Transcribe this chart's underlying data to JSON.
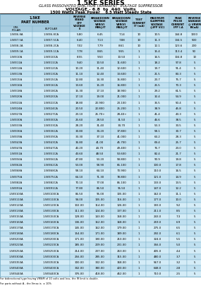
{
  "title": "1.5KE SERIES",
  "subtitle1": "GLASS PASSOVATED JUNCTION TRANSIENT  VOLTAGE SUPPRESSOR",
  "subtitle2": "VOLTAGE - 6.8  to  440  Volts",
  "subtitle3": "1500 Watts Peak Power    6.5 Watt Steady State",
  "col_headers": [
    "REVERSE\nSTAND\nOFF\nVOLTAGE\nE",
    "BREAKDOWN\nVOLTAGE\nVBR(V)\nMIN@IT",
    "BREAKDOWN\nVOLTAGE\nVBR(V)\nMAX@IT",
    "TEST\nCURRENT\nIT (mA)",
    "MAXIMUM\nCLAMPING\nVOLTAGE\n@IPP V(C)",
    "PEAK\nPULSE\nCURRENT\nIPP I.A",
    "REVERSE\nLEAKAGE\n@ VRWM\nIR(uA)"
  ],
  "rows": [
    [
      "1.5KE6.8A",
      "1.5KE6.8CA",
      "5.80",
      "6.45",
      "7.14",
      "10",
      "10.5",
      "144.8",
      "1000"
    ],
    [
      "1.5KE7.5A",
      "1.5KE7.5CA",
      "6.40",
      "7.13",
      "7.88",
      "10",
      "11.3",
      "134.5",
      "500"
    ],
    [
      "1.5KE8.2A",
      "1.5KE8.2CA",
      "7.02",
      "7.79",
      "8.61",
      "10",
      "12.1",
      "123.6",
      "200"
    ],
    [
      "1.5KE9.1A",
      "1.5KE9.1CA",
      "7.78",
      "8.65",
      "9.55",
      "1",
      "15.4",
      "113.4",
      "50"
    ],
    [
      "1.5KE10A",
      "1.5KE10CA",
      "8.55",
      "9.50",
      "10.50",
      "1",
      "16.5",
      "104.8",
      "10"
    ],
    [
      "1.5KE11A",
      "1.5KE11CA",
      "9.40",
      "10.50",
      "11.600",
      "1",
      "18.2",
      "97.8",
      "5"
    ],
    [
      "1.5KE12A",
      "1.5KE12CA",
      "10.20",
      "11.40",
      "12.600",
      "1",
      "19.7",
      "91.4",
      "5"
    ],
    [
      "1.5KE13A",
      "1.5KE13CA",
      "11.10",
      "12.40",
      "13.600",
      "1",
      "21.5",
      "83.3",
      "5"
    ],
    [
      "1.5KE15A",
      "1.5KE15CA",
      "12.80",
      "14.30",
      "15.800",
      "1",
      "23.7",
      "75.7",
      "5"
    ],
    [
      "1.5KE16A",
      "1.5KE16CA",
      "13.60",
      "15.20",
      "16.800",
      "1",
      "25.5",
      "70.3",
      "5"
    ],
    [
      "1.5KE18A",
      "1.5KE18CA",
      "15.30",
      "17.10",
      "18.900",
      "1",
      "29.2",
      "61.5",
      "5"
    ],
    [
      "1.5KE20A",
      "1.5KE20CA",
      "17.10",
      "19.00",
      "21.000",
      "1",
      "32.4",
      "54.9",
      "5"
    ],
    [
      "1.5KE22A",
      "1.5KE22CA",
      "18.80",
      "20.900",
      "23.100",
      "1",
      "35.5",
      "50.4",
      "5"
    ],
    [
      "1.5KE24A",
      "1.5KE24CA",
      "20.50",
      "22.800",
      "25.200",
      "1",
      "38.9",
      "45.8",
      "5"
    ],
    [
      "1.5KE27A",
      "1.5KE27CA",
      "23.10",
      "25.70+",
      "28.40+",
      "1",
      "41.4",
      "43.3",
      "5"
    ],
    [
      "1.5KE30A",
      "1.5KE30CA",
      "25.60",
      "28.50",
      "31.50",
      "1",
      "46.6",
      "38.5",
      "5"
    ],
    [
      "1.5KE33A",
      "1.5KE33CA",
      "28.20",
      "31.40",
      "34.70",
      "1",
      "53.3",
      "33.5",
      "5"
    ],
    [
      "1.5KE36A",
      "1.5KE36CA",
      "30.80",
      "34.20",
      "37.800",
      "1",
      "58.1",
      "30.7",
      "5"
    ],
    [
      "1.5KE39A",
      "1.5KE39CA",
      "33.30",
      "37.10",
      "41.000",
      "1",
      "63.2",
      "28.3",
      "5"
    ],
    [
      "1.5KE43A",
      "1.5KE43CA",
      "36.80",
      "41.00",
      "45.700",
      "1",
      "69.4",
      "25.7",
      "5"
    ],
    [
      "1.5KE47A",
      "1.5KE47CA",
      "40.20",
      "44.70",
      "49.400",
      "1",
      "76.7",
      "23.0",
      "5"
    ],
    [
      "1.5KE51A",
      "1.5KE51CA",
      "43.60",
      "48.50",
      "53.600",
      "1",
      "82.4",
      "21.7",
      "5"
    ],
    [
      "1.5KE56A",
      "1.5KE56CA",
      "47.80",
      "53.20",
      "58.800",
      "1",
      "90.9",
      "19.8",
      "5"
    ],
    [
      "1.5KE62A",
      "1.5KE62CA",
      "53.00",
      "58.90",
      "65.100",
      "1",
      "100.0",
      "17.8",
      "5"
    ],
    [
      "1.5KE68A",
      "1.5KE68CA",
      "58.10",
      "64.10",
      "70.900",
      "1",
      "110.0",
      "16.5",
      "5"
    ],
    [
      "1.5KE75A",
      "1.5KE75CA",
      "64.10",
      "71.30",
      "78.800",
      "1",
      "121.0",
      "14.9",
      "5"
    ],
    [
      "1.5KE82A",
      "1.5KE82CA",
      "70.10",
      "77.00",
      "85.100",
      "1",
      "133.0",
      "13.5",
      "5"
    ],
    [
      "1.5KE91A",
      "1.5KE91CA",
      "77.80",
      "86.50",
      "95.50",
      "1",
      "147.0",
      "12.2",
      "5"
    ],
    [
      "1.5KE100A",
      "1.5KE100CA",
      "85.50",
      "95.00",
      "105.00",
      "1",
      "162.0",
      "11.1",
      "5"
    ],
    [
      "1.5KE110A",
      "1.5KE110CA",
      "94.00",
      "105.00",
      "116.00",
      "1",
      "177.0",
      "10.0",
      "5"
    ],
    [
      "1.5KE120A",
      "1.5KE120CA",
      "102.00",
      "114.00",
      "126.00",
      "1",
      "193.0",
      "9.2",
      "5"
    ],
    [
      "1.5KE130A",
      "1.5KE130CA",
      "111.00",
      "124.00",
      "137.00",
      "1",
      "211.0",
      "8.5",
      "5"
    ],
    [
      "1.5KE150A",
      "1.5KE150CA",
      "128.00",
      "143.00",
      "158.00",
      "1",
      "243.0",
      "7.3",
      "5"
    ],
    [
      "1.5KE160A",
      "1.5KE160CA",
      "136.00",
      "152.00",
      "168.00",
      "1",
      "259.0",
      "6.9",
      "5"
    ],
    [
      "1.5KE170A",
      "1.5KE170CA",
      "145.00",
      "162.00",
      "179.00",
      "1",
      "275.0",
      "6.5",
      "5"
    ],
    [
      "1.5KE180A",
      "1.5KE180CA",
      "154.00",
      "171.00",
      "189.00",
      "1",
      "292.0",
      "6.1",
      "5"
    ],
    [
      "1.5KE200A",
      "1.5KE200CA",
      "171.00",
      "190.00",
      "210.00",
      "1",
      "324.0",
      "5.5",
      "5"
    ],
    [
      "1.5KE220A",
      "1.5KE220CA",
      "185.00",
      "209.00",
      "231.00",
      "1",
      "356.0",
      "5.0",
      "5"
    ],
    [
      "1.5KE250A",
      "1.5KE250CA",
      "214.00",
      "237.00",
      "263.00",
      "1",
      "405.0",
      "4.4",
      "5"
    ],
    [
      "1.5KE300A",
      "1.5KE300CA",
      "256.00",
      "285.00",
      "315.00",
      "1",
      "480.0",
      "3.7",
      "5"
    ],
    [
      "1.5KE350A",
      "1.5KE350CA",
      "300.00",
      "332.00",
      "368.00",
      "1",
      "567.0",
      "3.2",
      "5"
    ],
    [
      "1.5KE400A",
      "1.5KE400CA",
      "342.00",
      "380.00",
      "420.00",
      "1",
      "648.0",
      "2.8",
      "5"
    ],
    [
      "1.5KE440A",
      "1.5KE440CA",
      "376.00",
      "418.00",
      "462.00",
      "1",
      "710.0",
      "2.5",
      "5"
    ]
  ],
  "footer1": "For bidirectional type having VRWM of 10 volts and less, the IR limit is double.",
  "footer2": "For parts without A , the Vmax is  ± 10%",
  "hdr_bg": "#a8cde0",
  "row_bg_even": "#d4ecf7",
  "row_bg_odd": "#c0e0f0",
  "border_color": "#7aafc8",
  "title_color": "#000000"
}
